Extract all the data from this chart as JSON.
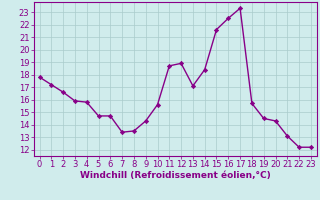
{
  "x": [
    0,
    1,
    2,
    3,
    4,
    5,
    6,
    7,
    8,
    9,
    10,
    11,
    12,
    13,
    14,
    15,
    16,
    17,
    18,
    19,
    20,
    21,
    22,
    23
  ],
  "y": [
    17.8,
    17.2,
    16.6,
    15.9,
    15.8,
    14.7,
    14.7,
    13.4,
    13.5,
    14.3,
    15.6,
    18.7,
    18.9,
    17.1,
    18.4,
    21.6,
    22.5,
    23.3,
    15.7,
    14.5,
    14.3,
    13.1,
    12.2,
    12.2
  ],
  "line_color": "#880088",
  "marker": "D",
  "markersize": 2.2,
  "linewidth": 1.0,
  "bg_color": "#d0ecec",
  "grid_color": "#aacccc",
  "xlabel": "Windchill (Refroidissement éolien,°C)",
  "ylabel_ticks": [
    12,
    13,
    14,
    15,
    16,
    17,
    18,
    19,
    20,
    21,
    22,
    23
  ],
  "xlim": [
    -0.5,
    23.5
  ],
  "ylim": [
    11.5,
    23.8
  ],
  "xlabel_fontsize": 6.5,
  "tick_fontsize": 6.0
}
